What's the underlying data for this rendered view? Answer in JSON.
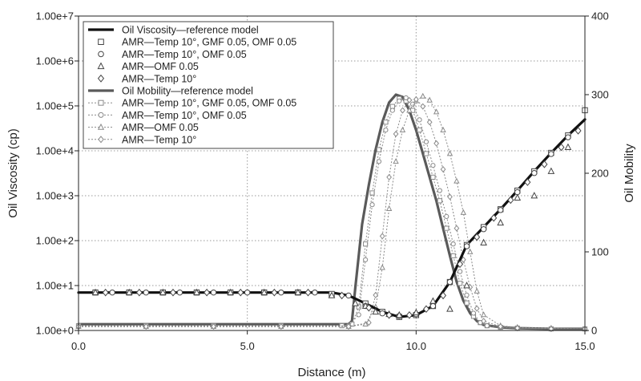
{
  "chart_data": {
    "type": "line",
    "xlabel": "Distance (m)",
    "ylabel_left": "Oil Viscosity (cp)",
    "ylabel_right": "Oil Mobility",
    "xlim": [
      0,
      15
    ],
    "ylim_left": [
      1,
      10000000
    ],
    "ylim_right": [
      0,
      400
    ],
    "left_scale": "log",
    "grid": true,
    "grid_style": "dotted",
    "legend_position": "top-left",
    "x_ticks": [
      "0.0",
      "5.0",
      "10.0",
      "15.0"
    ],
    "x_tick_values": [
      0,
      5,
      10,
      15
    ],
    "y_left_ticks": [
      "1.00e+0",
      "1.00e+1",
      "1.00e+2",
      "1.00e+3",
      "1.00e+4",
      "1.00e+5",
      "1.00e+6",
      "1.00e+7"
    ],
    "y_left_tick_values": [
      1,
      10,
      100,
      1000,
      10000,
      100000,
      1000000,
      10000000
    ],
    "y_right_ticks": [
      "0",
      "100",
      "200",
      "300",
      "400"
    ],
    "y_right_tick_values": [
      0,
      100,
      200,
      300,
      400
    ],
    "series": [
      {
        "name": "Oil Viscosity—reference model",
        "axis": "left",
        "style": "thick-solid",
        "marker": "none",
        "color": "#111111",
        "x": [
          0,
          2,
          4,
          6,
          7.5,
          8,
          8.5,
          9,
          9.5,
          10,
          10.5,
          11,
          11.5,
          12,
          12.5,
          13,
          13.5,
          14,
          14.5,
          15
        ],
        "y": [
          7,
          7,
          7,
          7,
          7,
          6,
          4,
          2.6,
          2,
          2.2,
          3.5,
          12,
          80,
          200,
          500,
          1300,
          3500,
          9000,
          22000,
          50000
        ]
      },
      {
        "name": "AMR—Temp 10°, GMF 0.05, OMF 0.05",
        "axis": "left",
        "style": "markers",
        "marker": "square",
        "color": "#444444",
        "x": [
          0.5,
          1.5,
          2.5,
          3.5,
          4.5,
          5.5,
          6.5,
          7.5,
          8.5,
          9,
          9.5,
          10,
          10.5,
          11,
          11.5,
          12,
          12.5,
          13,
          13.5,
          14,
          14.5,
          15
        ],
        "y": [
          7,
          7,
          7,
          7,
          7,
          7,
          7,
          6.5,
          4,
          2.6,
          2,
          2.2,
          3.5,
          12,
          80,
          200,
          500,
          1300,
          3500,
          9000,
          22000,
          80000
        ]
      },
      {
        "name": "AMR—Temp 10°, OMF 0.05",
        "axis": "left",
        "style": "markers",
        "marker": "circle",
        "color": "#444444",
        "x": [
          1,
          2,
          3,
          4,
          5,
          6,
          7,
          8,
          8.5,
          9,
          9.5,
          10,
          10.5,
          11,
          11.5,
          12,
          12.5,
          13,
          13.5,
          14,
          14.5
        ],
        "y": [
          7,
          7,
          7,
          7,
          7,
          7,
          7,
          6,
          3.5,
          2.4,
          2.1,
          2.3,
          3.5,
          12,
          75,
          180,
          480,
          1200,
          3200,
          8500,
          20000
        ]
      },
      {
        "name": "AMR—OMF 0.05",
        "axis": "left",
        "style": "markers",
        "marker": "triangle",
        "color": "#444444",
        "x": [
          0.5,
          1.5,
          2.5,
          3.5,
          4.5,
          5.5,
          6.5,
          7.5,
          8.2,
          8.5,
          8.8,
          9.2,
          9.5,
          10,
          10.5,
          11,
          11.5,
          12,
          12.5,
          13,
          13.5,
          14,
          14.5
        ],
        "y": [
          7,
          7,
          7,
          7,
          7,
          7,
          7,
          6,
          4,
          3.5,
          2.6,
          2.3,
          2.2,
          2.5,
          4.5,
          3,
          10,
          90,
          250,
          900,
          1000,
          3500,
          12000
        ]
      },
      {
        "name": "AMR—Temp 10°",
        "axis": "left",
        "style": "markers",
        "marker": "diamond",
        "color": "#444444",
        "x": [
          0.8,
          1.8,
          2.8,
          3.8,
          4.8,
          5.8,
          6.8,
          7.8,
          8.6,
          9.2,
          9.8,
          10.3,
          10.8,
          11.3,
          11.8,
          12.3,
          12.8,
          13.3,
          13.8,
          14.3,
          14.8
        ],
        "y": [
          7,
          7,
          7,
          7,
          7,
          7,
          7,
          6,
          3.2,
          2.2,
          2.2,
          3,
          6,
          30,
          120,
          320,
          800,
          2000,
          5000,
          12000,
          28000
        ]
      },
      {
        "name": "Oil Mobility—reference model",
        "axis": "right",
        "style": "thick-solid",
        "marker": "none",
        "color": "#5a5a5a",
        "x": [
          0,
          2,
          4,
          6,
          7,
          7.8,
          8,
          8.1,
          8.2,
          8.4,
          8.6,
          8.8,
          9,
          9.2,
          9.4,
          9.6,
          9.8,
          10,
          10.2,
          10.4,
          10.6,
          10.8,
          11,
          11.2,
          11.4,
          11.6,
          11.8,
          12,
          12.5,
          13,
          14,
          15
        ],
        "y": [
          8,
          8,
          8,
          8,
          8,
          8,
          8,
          12,
          55,
          135,
          185,
          230,
          265,
          290,
          300,
          297,
          280,
          255,
          225,
          195,
          165,
          130,
          95,
          62,
          38,
          22,
          12,
          7,
          4,
          3,
          2,
          2
        ]
      },
      {
        "name": "AMR—Temp 10°, GMF 0.05, OMF 0.05",
        "axis": "right",
        "style": "dotted-markers",
        "marker": "square",
        "color": "#8a8a8a",
        "x": [
          0,
          2,
          4,
          6,
          7.8,
          8.1,
          8.3,
          8.5,
          8.7,
          8.9,
          9.1,
          9.3,
          9.5,
          9.7,
          9.9,
          10.1,
          10.3,
          10.5,
          10.7,
          10.9,
          11.1,
          11.3,
          11.5,
          11.7,
          11.9,
          12.1,
          12.5,
          13,
          14,
          15
        ],
        "y": [
          6,
          6,
          6,
          6,
          6,
          8,
          30,
          110,
          175,
          230,
          265,
          285,
          295,
          292,
          280,
          255,
          225,
          195,
          165,
          130,
          95,
          60,
          35,
          18,
          10,
          6,
          4,
          3,
          2,
          2
        ]
      },
      {
        "name": "AMR—Temp 10°, OMF 0.05",
        "axis": "right",
        "style": "dotted-markers",
        "marker": "circle",
        "color": "#8a8a8a",
        "x": [
          0,
          2,
          4,
          6,
          8,
          8.3,
          8.5,
          8.7,
          8.9,
          9.1,
          9.3,
          9.5,
          9.7,
          9.9,
          10.1,
          10.3,
          10.5,
          10.7,
          10.9,
          11.1,
          11.3,
          11.5,
          11.7,
          11.9,
          12.1,
          12.5,
          13,
          14,
          15
        ],
        "y": [
          5,
          5,
          5,
          5,
          6,
          20,
          90,
          160,
          215,
          255,
          280,
          292,
          296,
          288,
          268,
          240,
          210,
          178,
          145,
          110,
          75,
          45,
          22,
          10,
          6,
          4,
          3,
          2,
          2
        ]
      },
      {
        "name": "AMR—OMF 0.05",
        "axis": "right",
        "style": "dotted-markers",
        "marker": "triangle",
        "color": "#8a8a8a",
        "x": [
          0,
          2,
          4,
          6,
          8,
          8.5,
          8.8,
          9,
          9.2,
          9.4,
          9.6,
          9.8,
          10,
          10.2,
          10.4,
          10.6,
          10.8,
          11,
          11.2,
          11.4,
          11.6,
          11.8,
          12,
          12.5,
          13,
          14,
          15
        ],
        "y": [
          5,
          5,
          5,
          5,
          5,
          8,
          30,
          80,
          155,
          215,
          255,
          280,
          292,
          298,
          293,
          278,
          255,
          225,
          190,
          150,
          100,
          50,
          20,
          6,
          4,
          3,
          2
        ]
      },
      {
        "name": "AMR—Temp 10°",
        "axis": "right",
        "style": "dotted-markers",
        "marker": "diamond",
        "color": "#8a8a8a",
        "x": [
          0,
          2,
          4,
          6,
          8,
          8.6,
          8.8,
          9,
          9.2,
          9.4,
          9.6,
          9.8,
          10,
          10.2,
          10.4,
          10.6,
          10.8,
          11,
          11.2,
          11.4,
          11.6,
          11.8,
          12,
          12.5,
          13,
          14,
          15
        ],
        "y": [
          5,
          5,
          5,
          5,
          5,
          10,
          45,
          120,
          195,
          250,
          280,
          293,
          294,
          285,
          265,
          238,
          205,
          170,
          130,
          90,
          55,
          28,
          12,
          5,
          3,
          2,
          2
        ]
      }
    ]
  }
}
